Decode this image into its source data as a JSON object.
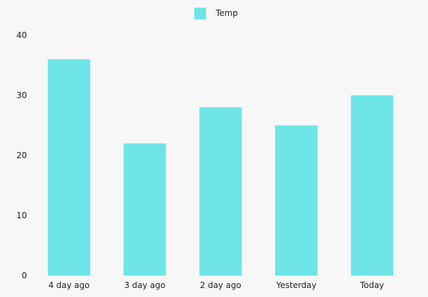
{
  "chart_data": {
    "type": "bar",
    "categories": [
      "4 day ago",
      "3 day ago",
      "2 day ago",
      "Yesterday",
      "Today"
    ],
    "series": [
      {
        "name": "Temp",
        "values": [
          36,
          22,
          28,
          25,
          30
        ],
        "color": "#6de5e8"
      }
    ],
    "title": "",
    "xlabel": "",
    "ylabel": "",
    "ylim": [
      0,
      40
    ],
    "yticks": [
      0,
      10,
      20,
      30,
      40
    ],
    "grid": false,
    "legend_position": "top-center"
  }
}
